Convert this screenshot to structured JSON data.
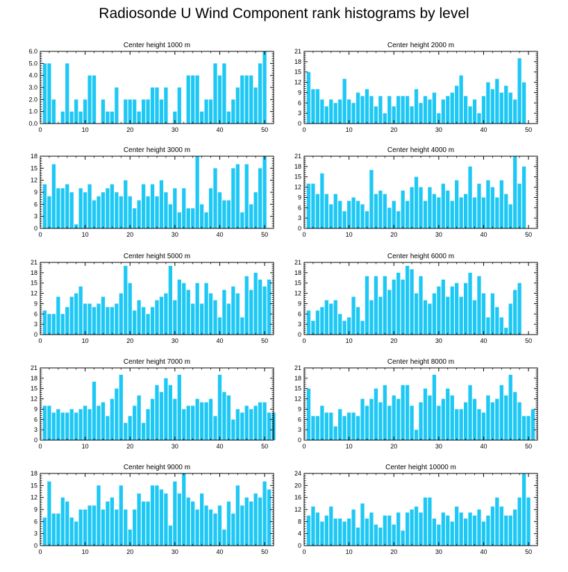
{
  "title": "Radiosonde U Wind Component rank histograms by level",
  "colors": {
    "bar": "#1ec8f5",
    "axis": "#000000",
    "background": "#ffffff"
  },
  "chart_data": [
    {
      "type": "bar",
      "title": "Center height 1000 m",
      "xlim": [
        0,
        52
      ],
      "ylim": [
        0,
        6
      ],
      "xticks": [
        "0",
        "10",
        "20",
        "30",
        "40",
        "50"
      ],
      "yticks": [
        "0.0",
        "1.0",
        "2.0",
        "3.0",
        "4.0",
        "5.0",
        "6.0"
      ],
      "values": [
        0,
        5,
        5,
        2,
        0,
        1,
        5,
        1,
        2,
        1,
        2,
        4,
        4,
        0,
        2,
        1,
        1,
        3,
        0,
        2,
        2,
        2,
        1,
        2,
        2,
        3,
        3,
        2,
        3,
        0,
        1,
        3,
        0,
        4,
        4,
        4,
        1,
        2,
        2,
        5,
        4,
        5,
        1,
        2,
        3,
        4,
        4,
        4,
        3,
        5,
        6
      ]
    },
    {
      "type": "bar",
      "title": "Center height 2000 m",
      "xlim": [
        0,
        52
      ],
      "ylim": [
        0,
        21
      ],
      "xticks": [
        "0",
        "10",
        "20",
        "30",
        "40",
        "50"
      ],
      "yticks": [
        "0",
        "3",
        "6",
        "9",
        "12",
        "15",
        "18",
        "21"
      ],
      "values": [
        0,
        15,
        10,
        10,
        7,
        5,
        7,
        6,
        7,
        13,
        7,
        6,
        9,
        8,
        10,
        8,
        5,
        8,
        3,
        8,
        5,
        8,
        8,
        8,
        5,
        10,
        6,
        8,
        7,
        9,
        3,
        7,
        8,
        9,
        11,
        14,
        8,
        5,
        7,
        3,
        8,
        12,
        10,
        13,
        9,
        11,
        9,
        7,
        19,
        12
      ]
    },
    {
      "type": "bar",
      "title": "Center height 3000 m",
      "xlim": [
        0,
        52
      ],
      "ylim": [
        0,
        18
      ],
      "xticks": [
        "0",
        "10",
        "20",
        "30",
        "40",
        "50"
      ],
      "yticks": [
        "0",
        "3",
        "6",
        "9",
        "12",
        "15",
        "18"
      ],
      "values": [
        0,
        11,
        8,
        16,
        10,
        10,
        11,
        9,
        1,
        10,
        9,
        11,
        7,
        8,
        9,
        10,
        11,
        9,
        8,
        12,
        8,
        5,
        7,
        11,
        8,
        11,
        8,
        12,
        9,
        6,
        10,
        4,
        10,
        5,
        5,
        18,
        6,
        4,
        10,
        15,
        9,
        7,
        7,
        15,
        16,
        4,
        16,
        6,
        9,
        15,
        18
      ]
    },
    {
      "type": "bar",
      "title": "Center height 4000 m",
      "xlim": [
        0,
        52
      ],
      "ylim": [
        0,
        21
      ],
      "xticks": [
        "0",
        "10",
        "20",
        "30",
        "40",
        "50"
      ],
      "yticks": [
        "0",
        "3",
        "6",
        "9",
        "12",
        "15",
        "18",
        "21"
      ],
      "values": [
        0,
        13,
        13,
        10,
        16,
        10,
        7,
        10,
        8,
        5,
        8,
        9,
        8,
        7,
        5,
        17,
        10,
        11,
        10,
        6,
        8,
        5,
        11,
        8,
        12,
        15,
        12,
        8,
        12,
        10,
        9,
        13,
        11,
        8,
        14,
        9,
        10,
        18,
        9,
        13,
        9,
        14,
        12,
        9,
        14,
        10,
        7,
        21,
        13,
        18
      ]
    },
    {
      "type": "bar",
      "title": "Center height 5000 m",
      "xlim": [
        0,
        52
      ],
      "ylim": [
        0,
        21
      ],
      "xticks": [
        "0",
        "10",
        "20",
        "30",
        "40",
        "50"
      ],
      "yticks": [
        "0",
        "3",
        "6",
        "9",
        "12",
        "15",
        "18",
        "21"
      ],
      "values": [
        0,
        7,
        6,
        6,
        11,
        6,
        8,
        11,
        12,
        14,
        9,
        9,
        8,
        9,
        11,
        8,
        8,
        9,
        12,
        20,
        15,
        7,
        10,
        8,
        6,
        8,
        10,
        11,
        12,
        20,
        10,
        16,
        15,
        13,
        9,
        15,
        9,
        15,
        12,
        10,
        5,
        13,
        9,
        14,
        12,
        5,
        17,
        13,
        18,
        16,
        14,
        16
      ]
    },
    {
      "type": "bar",
      "title": "Center height 6000 m",
      "xlim": [
        0,
        52
      ],
      "ylim": [
        0,
        21
      ],
      "xticks": [
        "0",
        "10",
        "20",
        "30",
        "40",
        "50"
      ],
      "yticks": [
        "0",
        "3",
        "6",
        "9",
        "12",
        "15",
        "18",
        "21"
      ],
      "values": [
        0,
        7,
        4,
        7,
        8,
        10,
        9,
        10,
        6,
        4,
        5,
        11,
        8,
        4,
        17,
        10,
        17,
        11,
        17,
        13,
        16,
        18,
        16,
        20,
        19,
        12,
        17,
        10,
        9,
        12,
        14,
        16,
        11,
        14,
        15,
        11,
        15,
        18,
        10,
        17,
        12,
        5,
        12,
        8,
        5,
        2,
        9,
        13,
        15
      ]
    },
    {
      "type": "bar",
      "title": "Center height 7000 m",
      "xlim": [
        0,
        52
      ],
      "ylim": [
        0,
        21
      ],
      "xticks": [
        "0",
        "10",
        "20",
        "30",
        "40",
        "50"
      ],
      "yticks": [
        "0",
        "3",
        "6",
        "9",
        "12",
        "15",
        "18",
        "21"
      ],
      "values": [
        0,
        10,
        10,
        8,
        9,
        8,
        8,
        9,
        8,
        9,
        10,
        9,
        17,
        10,
        11,
        7,
        12,
        15,
        19,
        5,
        7,
        10,
        13,
        5,
        9,
        12,
        16,
        14,
        18,
        16,
        12,
        19,
        9,
        10,
        10,
        12,
        11,
        11,
        12,
        7,
        19,
        14,
        13,
        6,
        9,
        8,
        10,
        9,
        10,
        11,
        11,
        8,
        8
      ]
    },
    {
      "type": "bar",
      "title": "Center height 8000 m",
      "xlim": [
        0,
        52
      ],
      "ylim": [
        0,
        21
      ],
      "xticks": [
        "0",
        "10",
        "20",
        "30",
        "40",
        "50"
      ],
      "yticks": [
        "0",
        "3",
        "6",
        "9",
        "12",
        "15",
        "18",
        "21"
      ],
      "values": [
        0,
        15,
        7,
        7,
        10,
        8,
        8,
        4,
        9,
        7,
        8,
        8,
        7,
        12,
        10,
        12,
        15,
        11,
        16,
        10,
        13,
        12,
        16,
        16,
        10,
        3,
        11,
        15,
        13,
        19,
        10,
        12,
        15,
        13,
        9,
        9,
        11,
        16,
        12,
        9,
        8,
        13,
        11,
        12,
        16,
        13,
        19,
        14,
        11,
        7,
        7,
        9
      ]
    },
    {
      "type": "bar",
      "title": "Center height 9000 m",
      "xlim": [
        0,
        52
      ],
      "ylim": [
        0,
        18
      ],
      "xticks": [
        "0",
        "10",
        "20",
        "30",
        "40",
        "50"
      ],
      "yticks": [
        "0",
        "3",
        "6",
        "9",
        "12",
        "15",
        "18"
      ],
      "values": [
        0,
        7,
        16,
        8,
        8,
        12,
        11,
        7,
        6,
        9,
        9,
        10,
        10,
        15,
        9,
        11,
        12,
        9,
        15,
        9,
        4,
        9,
        13,
        11,
        11,
        15,
        15,
        14,
        13,
        5,
        16,
        13,
        18,
        12,
        11,
        9,
        13,
        10,
        9,
        8,
        10,
        4,
        11,
        8,
        15,
        10,
        12,
        11,
        13,
        12,
        16,
        14
      ]
    },
    {
      "type": "bar",
      "title": "Center height 10000 m",
      "xlim": [
        0,
        52
      ],
      "ylim": [
        0,
        24
      ],
      "xticks": [
        "0",
        "10",
        "20",
        "30",
        "40",
        "50"
      ],
      "yticks": [
        "0",
        "4",
        "8",
        "12",
        "16",
        "20",
        "24"
      ],
      "values": [
        0,
        10,
        13,
        11,
        8,
        10,
        13,
        9,
        9,
        8,
        9,
        12,
        6,
        14,
        9,
        11,
        7,
        6,
        10,
        10,
        7,
        11,
        5,
        11,
        12,
        13,
        11,
        16,
        16,
        9,
        7,
        11,
        10,
        8,
        13,
        11,
        9,
        11,
        10,
        12,
        8,
        10,
        13,
        16,
        13,
        10,
        10,
        12,
        16,
        24,
        16
      ]
    }
  ]
}
